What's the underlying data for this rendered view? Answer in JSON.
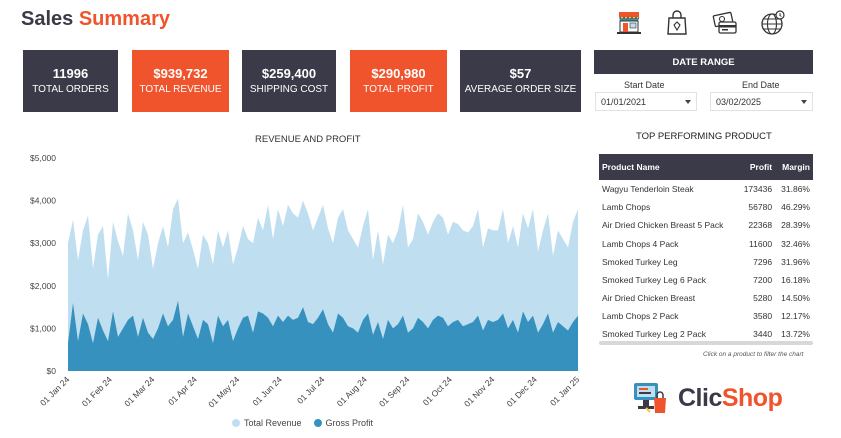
{
  "header": {
    "title_part1": "Sales",
    "title_part2": "Summary"
  },
  "top_icons": [
    "store-icon",
    "shopping-bag-icon",
    "payment-icon",
    "globe-icon"
  ],
  "kpis": [
    {
      "value": "11996",
      "label": "TOTAL ORDERS",
      "style": "dark"
    },
    {
      "value": "$939,732",
      "label": "TOTAL REVENUE",
      "style": "red"
    },
    {
      "value": "$259,400",
      "label": "SHIPPING COST",
      "style": "dark"
    },
    {
      "value": "$290,980",
      "label": "TOTAL PROFIT",
      "style": "red"
    },
    {
      "value": "$57",
      "label": "AVERAGE ORDER SIZE",
      "style": "dark"
    }
  ],
  "date_range": {
    "header": "DATE RANGE",
    "start_label": "Start Date",
    "end_label": "End Date",
    "start_value": "01/01/2021",
    "end_value": "03/02/2025"
  },
  "chart_data": {
    "type": "area",
    "title": "REVENUE AND PROFIT",
    "y_ticks": [
      "$0",
      "$1,000",
      "$2,000",
      "$3,000",
      "$4,000",
      "$5,000"
    ],
    "ylim": [
      0,
      5000
    ],
    "x_ticks": [
      "01 Jan 24",
      "01 Feb 24",
      "01 Mar 24",
      "01 Apr 24",
      "01 May 24",
      "01 Jun 24",
      "01 Jul 24",
      "01 Aug 24",
      "01 Sep 24",
      "01 Oct 24",
      "01 Nov 24",
      "01 Dec 24",
      "01 Jan 25"
    ],
    "grid": false,
    "legend_position": "bottom",
    "series": [
      {
        "name": "Total Revenue",
        "color": "#bfdff0",
        "values": [
          3000,
          3550,
          2600,
          3300,
          3650,
          2400,
          3200,
          3400,
          2150,
          3500,
          3050,
          2700,
          3700,
          3300,
          2600,
          3500,
          3200,
          2400,
          3000,
          3400,
          2900,
          3800,
          4050,
          3000,
          3250,
          2850,
          2400,
          3200,
          3000,
          2500,
          3300,
          2900,
          3300,
          2500,
          2900,
          3400,
          3100,
          3000,
          3600,
          3300,
          3900,
          3100,
          3800,
          3400,
          3900,
          3700,
          3600,
          4000,
          3700,
          3300,
          3600,
          3900,
          3350,
          3000,
          3600,
          3800,
          3300,
          3100,
          2900,
          3400,
          3800,
          2600,
          3300,
          2500,
          3200,
          3000,
          3300,
          3900,
          2900,
          3100,
          3700,
          3500,
          3200,
          3500,
          3700,
          3600,
          3200,
          3500,
          3450,
          3300,
          3250,
          3400,
          3800,
          2900,
          3350,
          3300,
          3300,
          3800,
          3000,
          3400,
          2900,
          3700,
          3350,
          3800,
          2800,
          3300,
          3700,
          2700,
          3300,
          3100,
          2900,
          3500,
          3800
        ]
      },
      {
        "name": "Gross Profit",
        "color": "#3791bf",
        "values": [
          650,
          1600,
          700,
          1350,
          1100,
          650,
          1250,
          950,
          700,
          1400,
          800,
          1000,
          1200,
          1300,
          800,
          1250,
          900,
          750,
          1000,
          1350,
          1050,
          1200,
          1650,
          800,
          1350,
          1050,
          750,
          1200,
          1100,
          650,
          1300,
          1050,
          1200,
          700,
          1000,
          1250,
          1300,
          900,
          1400,
          1350,
          1250,
          1050,
          1300,
          1150,
          1300,
          1200,
          1250,
          1500,
          1150,
          1100,
          1250,
          1450,
          1100,
          900,
          1350,
          1250,
          1050,
          1000,
          900,
          1200,
          1350,
          850,
          1150,
          750,
          1200,
          1000,
          1100,
          1300,
          900,
          1000,
          1250,
          1150,
          1000,
          1200,
          1300,
          1250,
          1050,
          1150,
          1200,
          1050,
          1100,
          1150,
          1300,
          950,
          1200,
          1150,
          1200,
          1350,
          1000,
          1200,
          900,
          1400,
          1150,
          1300,
          900,
          1100,
          1350,
          900,
          1150,
          1050,
          950,
          1150,
          1300
        ]
      }
    ]
  },
  "top_products": {
    "title": "TOP PERFORMING PRODUCT",
    "headers": {
      "name": "Product Name",
      "profit": "Profit",
      "margin": "Margin"
    },
    "rows": [
      {
        "name": "Wagyu Tenderloin Steak",
        "profit": "173436",
        "margin": "31.86%"
      },
      {
        "name": "Lamb Chops",
        "profit": "56780",
        "margin": "46.29%"
      },
      {
        "name": "Air Dried Chicken Breast 5 Pack",
        "profit": "22368",
        "margin": "28.39%"
      },
      {
        "name": "Lamb Chops 4 Pack",
        "profit": "11600",
        "margin": "32.46%"
      },
      {
        "name": "Smoked Turkey Leg",
        "profit": "7296",
        "margin": "31.96%"
      },
      {
        "name": "Smoked Turkey Leg 6 Pack",
        "profit": "7200",
        "margin": "16.18%"
      },
      {
        "name": "Air Dried Chicken Breast",
        "profit": "5280",
        "margin": "14.50%"
      },
      {
        "name": "Lamb Chops 2 Pack",
        "profit": "3580",
        "margin": "12.17%"
      },
      {
        "name": "Smoked Turkey Leg 2 Pack",
        "profit": "3440",
        "margin": "13.72%"
      }
    ],
    "note": "Click on a product to filter the chart"
  },
  "logo": {
    "part1": "Clic",
    "part2": "Shop"
  },
  "colors": {
    "dark": "#3a3a48",
    "accent": "#f0542d",
    "revenue": "#bfdff0",
    "profit": "#3791bf"
  }
}
